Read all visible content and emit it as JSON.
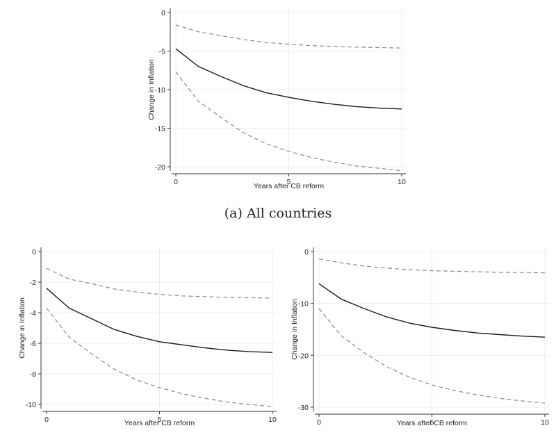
{
  "caption_a": "(a) All countries",
  "chart_data": [
    {
      "type": "line",
      "panel": "a",
      "xlabel": "Years after CB reform",
      "ylabel": "Change in Inflation",
      "xlim": [
        0,
        10
      ],
      "ylim": [
        -20,
        0
      ],
      "x_ticks": [
        0,
        5,
        10
      ],
      "y_ticks": [
        0,
        -5,
        -10,
        -15,
        -20
      ],
      "grid": true,
      "x": [
        0,
        1,
        2,
        3,
        4,
        5,
        6,
        7,
        8,
        9,
        10
      ],
      "series": [
        {
          "role": "estimate",
          "style": "solid",
          "color": "#1a1a1a",
          "values": [
            -4.7,
            -7.0,
            -8.3,
            -9.5,
            -10.4,
            -11.0,
            -11.5,
            -11.9,
            -12.2,
            -12.4,
            -12.5
          ]
        },
        {
          "role": "upper",
          "style": "dashed",
          "color": "#8a8a8a",
          "values": [
            -1.6,
            -2.5,
            -3.0,
            -3.5,
            -3.9,
            -4.1,
            -4.3,
            -4.4,
            -4.5,
            -4.55,
            -4.6
          ]
        },
        {
          "role": "lower",
          "style": "dashed",
          "color": "#8a8a8a",
          "values": [
            -7.7,
            -11.5,
            -13.6,
            -15.6,
            -17.0,
            -18.0,
            -18.8,
            -19.4,
            -19.9,
            -20.2,
            -20.5
          ]
        }
      ]
    },
    {
      "type": "line",
      "panel": "b",
      "xlabel": "Years after CB reform",
      "ylabel": "Change in Inflation",
      "xlim": [
        0,
        10
      ],
      "ylim": [
        -10,
        0
      ],
      "x_ticks": [
        0,
        5,
        10
      ],
      "y_ticks": [
        0,
        -2,
        -4,
        -6,
        -8,
        -10
      ],
      "grid": true,
      "x": [
        0,
        1,
        2,
        3,
        4,
        5,
        6,
        7,
        8,
        9,
        10
      ],
      "series": [
        {
          "role": "estimate",
          "style": "solid",
          "color": "#1a1a1a",
          "values": [
            -2.4,
            -3.7,
            -4.4,
            -5.1,
            -5.55,
            -5.9,
            -6.1,
            -6.3,
            -6.45,
            -6.55,
            -6.6
          ]
        },
        {
          "role": "upper",
          "style": "dashed",
          "color": "#8a8a8a",
          "values": [
            -1.1,
            -1.8,
            -2.1,
            -2.45,
            -2.65,
            -2.8,
            -2.9,
            -2.95,
            -3.0,
            -3.02,
            -3.05
          ]
        },
        {
          "role": "lower",
          "style": "dashed",
          "color": "#8a8a8a",
          "values": [
            -3.7,
            -5.6,
            -6.7,
            -7.7,
            -8.4,
            -8.9,
            -9.3,
            -9.6,
            -9.85,
            -10.0,
            -10.15
          ]
        }
      ]
    },
    {
      "type": "line",
      "panel": "c",
      "xlabel": "Years after CB reform",
      "ylabel": "Change in Inflation",
      "xlim": [
        0,
        10
      ],
      "ylim": [
        -30,
        0
      ],
      "x_ticks": [
        0,
        5,
        10
      ],
      "y_ticks": [
        0,
        -10,
        -20,
        -30
      ],
      "grid": true,
      "x": [
        0,
        1,
        2,
        3,
        4,
        5,
        6,
        7,
        8,
        9,
        10
      ],
      "series": [
        {
          "role": "estimate",
          "style": "solid",
          "color": "#1a1a1a",
          "values": [
            -6.2,
            -9.2,
            -11.0,
            -12.6,
            -13.8,
            -14.6,
            -15.2,
            -15.7,
            -16.0,
            -16.3,
            -16.5
          ]
        },
        {
          "role": "upper",
          "style": "dashed",
          "color": "#8a8a8a",
          "values": [
            -1.4,
            -2.2,
            -2.8,
            -3.2,
            -3.5,
            -3.7,
            -3.8,
            -3.9,
            -4.0,
            -4.05,
            -4.1
          ]
        },
        {
          "role": "lower",
          "style": "dashed",
          "color": "#8a8a8a",
          "values": [
            -11.0,
            -16.3,
            -19.5,
            -22.2,
            -24.2,
            -25.7,
            -26.8,
            -27.6,
            -28.3,
            -28.8,
            -29.2
          ]
        }
      ]
    }
  ]
}
